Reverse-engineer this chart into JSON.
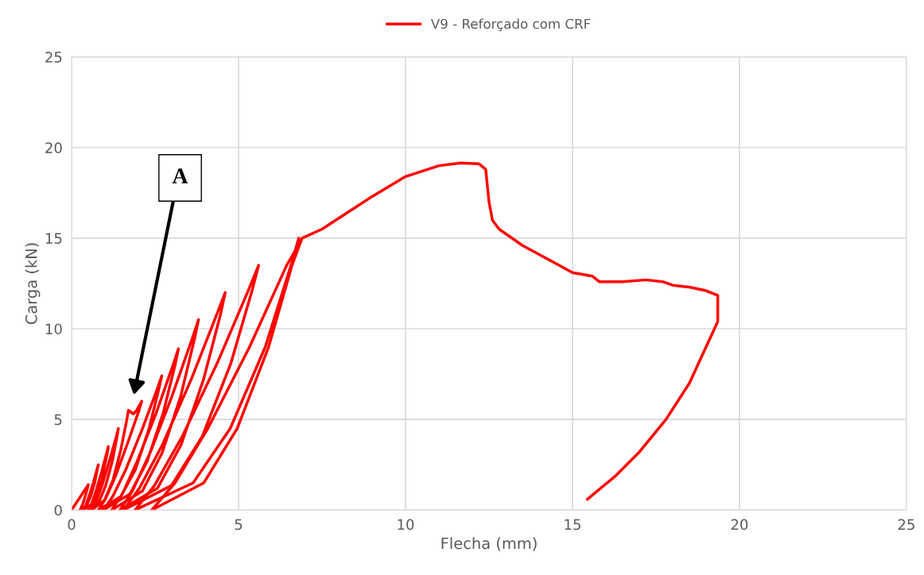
{
  "chart_data": {
    "type": "line",
    "xlabel": "Flecha (mm)",
    "ylabel": "Carga (kN)",
    "xlim": [
      0,
      25
    ],
    "ylim": [
      0,
      25
    ],
    "xticks": [
      0,
      5,
      10,
      15,
      20,
      25
    ],
    "yticks": [
      0,
      5,
      10,
      15,
      20,
      25
    ],
    "grid": true,
    "legend": "top",
    "marker": "none",
    "line_style": "solid",
    "series": [
      {
        "name": "V9 - Reforçado com CRF",
        "color": "#ff0000",
        "x": [
          0,
          0.25,
          0.5,
          0.48,
          0.42,
          0.35,
          0.29,
          0.25,
          0.45,
          0.57,
          0.69,
          0.77,
          0.8,
          0.76,
          0.65,
          0.52,
          0.42,
          0.35,
          0.62,
          0.79,
          0.95,
          1.07,
          1.1,
          1.05,
          0.9,
          0.73,
          0.6,
          0.5,
          0.82,
          1.02,
          1.22,
          1.36,
          1.4,
          1.34,
          1.13,
          0.91,
          0.73,
          0.6,
          0.99,
          1.24,
          1.47,
          1.65,
          1.7,
          1.85,
          1.95,
          2.1,
          2.0,
          1.66,
          1.3,
          1.01,
          0.8,
          1.47,
          1.91,
          2.31,
          2.61,
          2.7,
          2.56,
          2.11,
          1.62,
          1.23,
          0.95,
          1.75,
          2.26,
          2.74,
          3.1,
          3.2,
          3.04,
          2.53,
          1.96,
          1.52,
          1.2,
          2.12,
          2.71,
          3.27,
          3.68,
          3.8,
          3.61,
          3.01,
          2.35,
          1.82,
          1.45,
          2.57,
          3.28,
          3.95,
          4.46,
          4.6,
          4.35,
          3.58,
          2.72,
          2.03,
          1.55,
          2.99,
          3.91,
          4.77,
          5.41,
          5.6,
          5.3,
          4.36,
          3.31,
          2.48,
          1.9,
          3.64,
          4.75,
          5.8,
          6.57,
          6.8,
          6.85,
          6.44,
          5.33,
          4.08,
          3.1,
          2.4,
          3.96,
          4.96,
          5.9,
          6.6,
          6.9,
          7.5,
          8,
          9,
          10,
          11,
          11.65,
          12.2,
          12.4,
          12.5,
          12.6,
          12.8,
          13.5,
          14.5,
          15,
          15.6,
          15.8,
          16.5,
          17.2,
          17.7,
          18,
          18.5,
          19,
          19.35,
          19.35,
          19,
          18.5,
          17.8,
          17,
          16.3,
          15.45
        ],
        "values": [
          0,
          0.7,
          1.4,
          1.26,
          0.84,
          0.42,
          0.14,
          0,
          0.25,
          0.75,
          1.5,
          2.25,
          2.5,
          2.25,
          1.5,
          0.75,
          0.25,
          0,
          0.35,
          1.05,
          2.1,
          3.15,
          3.5,
          3.15,
          2.1,
          1.05,
          0.35,
          0,
          0.45,
          1.35,
          2.7,
          4.05,
          4.5,
          4.05,
          2.7,
          1.35,
          0.45,
          0,
          0.55,
          1.65,
          3.3,
          4.95,
          5.5,
          5.3,
          5.5,
          6.0,
          5.4,
          3.6,
          1.8,
          0.6,
          0,
          0.74,
          2.22,
          4.44,
          6.66,
          7.4,
          6.66,
          4.44,
          2.22,
          0.74,
          0,
          0.89,
          2.67,
          5.34,
          8.01,
          8.9,
          8.01,
          5.34,
          2.67,
          0.89,
          0,
          1.05,
          3.15,
          6.3,
          9.45,
          10.5,
          9.45,
          6.3,
          3.15,
          1.05,
          0,
          1.2,
          3.6,
          7.2,
          10.8,
          12.0,
          10.8,
          7.2,
          3.6,
          1.2,
          0,
          1.35,
          4.05,
          8.1,
          12.15,
          13.5,
          12.15,
          8.1,
          4.05,
          1.35,
          0,
          1.5,
          4.5,
          9.0,
          13.5,
          15.0,
          14.8,
          13.5,
          9.0,
          4.5,
          1.5,
          0,
          1.5,
          4.5,
          9.0,
          13.5,
          15.0,
          15.5,
          16.1,
          17.3,
          18.4,
          19.0,
          19.15,
          19.1,
          18.8,
          17,
          16,
          15.5,
          14.6,
          13.6,
          13.1,
          12.9,
          12.6,
          12.6,
          12.7,
          12.6,
          12.4,
          12.3,
          12.1,
          11.85,
          10.4,
          9,
          7,
          5,
          3.2,
          1.9,
          0.6
        ]
      }
    ],
    "annotations": [
      "A"
    ]
  }
}
